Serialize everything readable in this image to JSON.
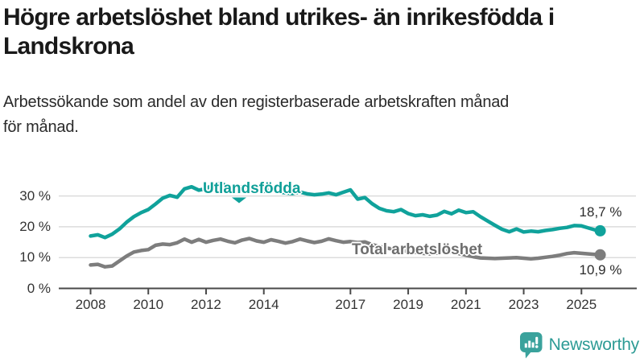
{
  "chart_data": {
    "type": "line",
    "title": "Högre arbetslöshet bland utrikes- än inrikesfödda i Landskrona",
    "title_lines": [
      "Högre arbetslöshet bland utrikes- än inrikesfödda i",
      "Landskrona"
    ],
    "subtitle": "Arbetssökande som andel av den registerbaserade arbetskraften månad för månad.",
    "subtitle_lines": [
      "Arbetssökande som andel av den registerbaserade arbetskraften månad",
      "för månad."
    ],
    "xlabel": "",
    "ylabel": "",
    "ylim": [
      0,
      35
    ],
    "xlim": [
      2008,
      2026
    ],
    "grid": "horizontal",
    "legend": "inline-labels-on-lines",
    "yticks": [
      {
        "value": 0,
        "label": "0 %"
      },
      {
        "value": 10,
        "label": "10 %"
      },
      {
        "value": 20,
        "label": "20 %"
      },
      {
        "value": 30,
        "label": "30 %"
      }
    ],
    "xticks": [
      {
        "value": 2008,
        "label": "2008"
      },
      {
        "value": 2010,
        "label": "2010"
      },
      {
        "value": 2012,
        "label": "2012"
      },
      {
        "value": 2014,
        "label": "2014"
      },
      {
        "value": 2017,
        "label": "2017"
      },
      {
        "value": 2019,
        "label": "2019"
      },
      {
        "value": 2021,
        "label": "2021"
      },
      {
        "value": 2023,
        "label": "2023"
      },
      {
        "value": 2025,
        "label": "2025"
      }
    ],
    "series": [
      {
        "name": "Utlandsfödda",
        "color": "#10a29b",
        "end_label": "18,7 %",
        "end_value": 18.7,
        "points": [
          [
            2008.0,
            17.0
          ],
          [
            2008.25,
            17.4
          ],
          [
            2008.5,
            16.5
          ],
          [
            2008.75,
            17.6
          ],
          [
            2009.0,
            19.3
          ],
          [
            2009.25,
            21.5
          ],
          [
            2009.5,
            23.3
          ],
          [
            2009.75,
            24.6
          ],
          [
            2010.0,
            25.6
          ],
          [
            2010.25,
            27.4
          ],
          [
            2010.5,
            29.3
          ],
          [
            2010.75,
            30.2
          ],
          [
            2011.0,
            29.6
          ],
          [
            2011.25,
            32.3
          ],
          [
            2011.5,
            33.0
          ],
          [
            2011.75,
            31.9
          ],
          [
            2012.0,
            32.4
          ],
          [
            2012.25,
            33.7
          ],
          [
            2012.5,
            34.1
          ],
          [
            2012.75,
            33.2
          ],
          [
            2013.0,
            32.6
          ],
          [
            2013.25,
            33.0
          ],
          [
            2013.5,
            32.2
          ],
          [
            2013.75,
            31.8
          ],
          [
            2014.0,
            31.5
          ],
          [
            2014.25,
            32.0
          ],
          [
            2014.5,
            31.4
          ],
          [
            2014.75,
            31.0
          ],
          [
            2015.0,
            30.8
          ],
          [
            2015.25,
            31.3
          ],
          [
            2015.5,
            30.7
          ],
          [
            2015.75,
            30.4
          ],
          [
            2016.0,
            30.6
          ],
          [
            2016.25,
            31.0
          ],
          [
            2016.5,
            30.4
          ],
          [
            2016.75,
            31.2
          ],
          [
            2017.0,
            32.0
          ],
          [
            2017.25,
            29.0
          ],
          [
            2017.5,
            29.5
          ],
          [
            2017.75,
            27.5
          ],
          [
            2018.0,
            26.0
          ],
          [
            2018.25,
            25.2
          ],
          [
            2018.5,
            24.9
          ],
          [
            2018.75,
            25.6
          ],
          [
            2019.0,
            24.3
          ],
          [
            2019.25,
            23.6
          ],
          [
            2019.5,
            23.9
          ],
          [
            2019.75,
            23.4
          ],
          [
            2020.0,
            23.8
          ],
          [
            2020.25,
            25.0
          ],
          [
            2020.5,
            24.2
          ],
          [
            2020.75,
            25.4
          ],
          [
            2021.0,
            24.6
          ],
          [
            2021.25,
            24.9
          ],
          [
            2021.5,
            23.3
          ],
          [
            2021.75,
            21.9
          ],
          [
            2022.0,
            20.5
          ],
          [
            2022.25,
            19.2
          ],
          [
            2022.5,
            18.4
          ],
          [
            2022.75,
            19.3
          ],
          [
            2023.0,
            18.3
          ],
          [
            2023.25,
            18.6
          ],
          [
            2023.5,
            18.4
          ],
          [
            2023.75,
            18.8
          ],
          [
            2024.0,
            19.1
          ],
          [
            2024.25,
            19.5
          ],
          [
            2024.5,
            19.8
          ],
          [
            2024.75,
            20.4
          ],
          [
            2025.0,
            20.3
          ],
          [
            2025.25,
            19.6
          ],
          [
            2025.5,
            18.9
          ],
          [
            2025.65,
            18.7
          ]
        ]
      },
      {
        "name": "Total arbetslöshet",
        "color": "#7d7d7d",
        "end_label": "10,9 %",
        "end_value": 10.9,
        "points": [
          [
            2008.0,
            7.6
          ],
          [
            2008.25,
            7.8
          ],
          [
            2008.5,
            7.0
          ],
          [
            2008.75,
            7.3
          ],
          [
            2009.0,
            8.9
          ],
          [
            2009.25,
            10.5
          ],
          [
            2009.5,
            11.8
          ],
          [
            2009.75,
            12.3
          ],
          [
            2010.0,
            12.6
          ],
          [
            2010.25,
            14.0
          ],
          [
            2010.5,
            14.4
          ],
          [
            2010.75,
            14.2
          ],
          [
            2011.0,
            14.8
          ],
          [
            2011.25,
            16.0
          ],
          [
            2011.5,
            15.0
          ],
          [
            2011.75,
            15.9
          ],
          [
            2012.0,
            15.0
          ],
          [
            2012.25,
            15.6
          ],
          [
            2012.5,
            16.0
          ],
          [
            2012.75,
            15.3
          ],
          [
            2013.0,
            14.8
          ],
          [
            2013.25,
            15.7
          ],
          [
            2013.5,
            16.2
          ],
          [
            2013.75,
            15.4
          ],
          [
            2014.0,
            15.0
          ],
          [
            2014.25,
            15.8
          ],
          [
            2014.5,
            15.3
          ],
          [
            2014.75,
            14.7
          ],
          [
            2015.0,
            15.2
          ],
          [
            2015.25,
            16.0
          ],
          [
            2015.5,
            15.4
          ],
          [
            2015.75,
            14.9
          ],
          [
            2016.0,
            15.3
          ],
          [
            2016.25,
            16.1
          ],
          [
            2016.5,
            15.5
          ],
          [
            2016.75,
            15.0
          ],
          [
            2017.0,
            15.2
          ],
          [
            2017.25,
            14.9
          ],
          [
            2017.5,
            15.1
          ],
          [
            2017.75,
            14.2
          ],
          [
            2018.0,
            13.6
          ],
          [
            2018.25,
            13.1
          ],
          [
            2018.5,
            12.7
          ],
          [
            2018.75,
            12.3
          ],
          [
            2019.0,
            12.0
          ],
          [
            2019.25,
            11.7
          ],
          [
            2019.5,
            11.4
          ],
          [
            2019.75,
            11.2
          ],
          [
            2020.0,
            11.5
          ],
          [
            2020.25,
            12.2
          ],
          [
            2020.5,
            11.8
          ],
          [
            2020.75,
            11.3
          ],
          [
            2021.0,
            10.8
          ],
          [
            2021.25,
            10.3
          ],
          [
            2021.5,
            9.9
          ],
          [
            2021.75,
            9.8
          ],
          [
            2022.0,
            9.7
          ],
          [
            2022.25,
            9.8
          ],
          [
            2022.5,
            9.9
          ],
          [
            2022.75,
            10.0
          ],
          [
            2023.0,
            9.8
          ],
          [
            2023.25,
            9.6
          ],
          [
            2023.5,
            9.8
          ],
          [
            2023.75,
            10.1
          ],
          [
            2024.0,
            10.4
          ],
          [
            2024.25,
            10.8
          ],
          [
            2024.5,
            11.3
          ],
          [
            2024.75,
            11.6
          ],
          [
            2025.0,
            11.4
          ],
          [
            2025.25,
            11.2
          ],
          [
            2025.5,
            11.0
          ],
          [
            2025.65,
            10.9
          ]
        ]
      }
    ],
    "colors": {
      "accent_teal": "#10a29b",
      "line_gray": "#7d7d7d",
      "gridline": "#dcdcdc",
      "axis": "#494949"
    }
  },
  "branding": {
    "logo_text": "Newsworthy"
  }
}
